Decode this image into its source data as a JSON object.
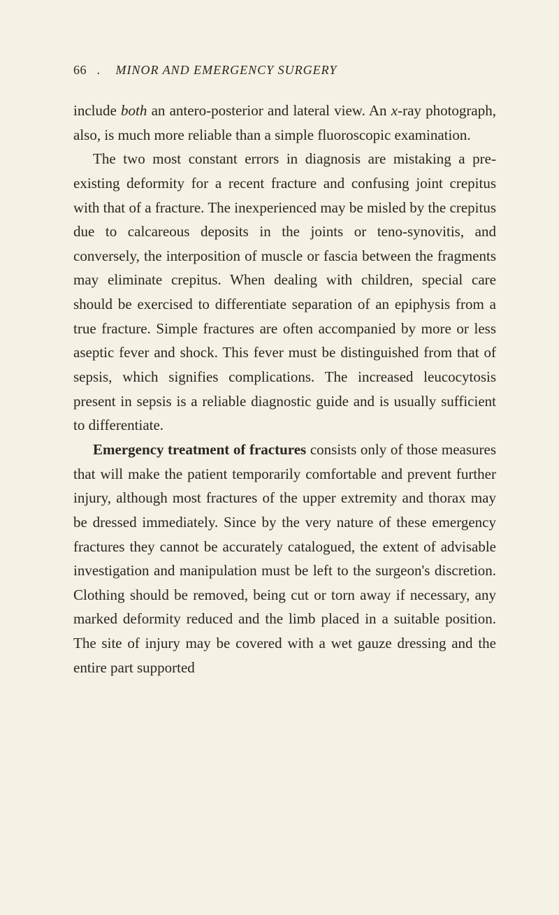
{
  "header": {
    "page_number": "66",
    "separator": ".",
    "title": "MINOR AND EMERGENCY SURGERY"
  },
  "paragraphs": {
    "p1_part1": "include ",
    "p1_italic1": "both",
    "p1_part2": " an antero-posterior and lateral view. An ",
    "p1_italic2": "x",
    "p1_part3": "-ray photograph, also, is much more reliable than a simple fluoroscopic examination.",
    "p2": "The two most constant errors in diagnosis are mistaking a pre-existing deformity for a recent fracture and confusing joint crepitus with that of a fracture. The inexperienced may be misled by the crepitus due to calcareous deposits in the joints or teno-synovitis, and conversely, the interposition of muscle or fascia between the fragments may eliminate crepitus. When dealing with children, special care should be exercised to differentiate separation of an epiphysis from a true fracture. Simple fractures are often accompanied by more or less aseptic fever and shock. This fever must be distinguished from that of sepsis, which signifies complications. The increased leucocytosis present in sepsis is a reliable diagnostic guide and is usually sufficient to differentiate.",
    "p3_bold": "Emergency treatment of fractures",
    "p3_rest": " consists only of those measures that will make the patient temporarily comfortable and prevent further injury, although most fractures of the upper extremity and thorax may be dressed immediately. Since by the very nature of these emergency fractures they cannot be accurately catalogued, the extent of advisable investigation and manipulation must be left to the surgeon's discretion. Clothing should be removed, being cut or torn away if necessary, any marked deformity reduced and the limb placed in a suitable position. The site of injury may be covered with a wet gauze dressing and the entire part supported"
  },
  "style": {
    "background_color": "#f5f1e4",
    "text_color": "#2a2520",
    "body_fontsize": 21,
    "header_fontsize": 18,
    "line_height": 1.65
  }
}
